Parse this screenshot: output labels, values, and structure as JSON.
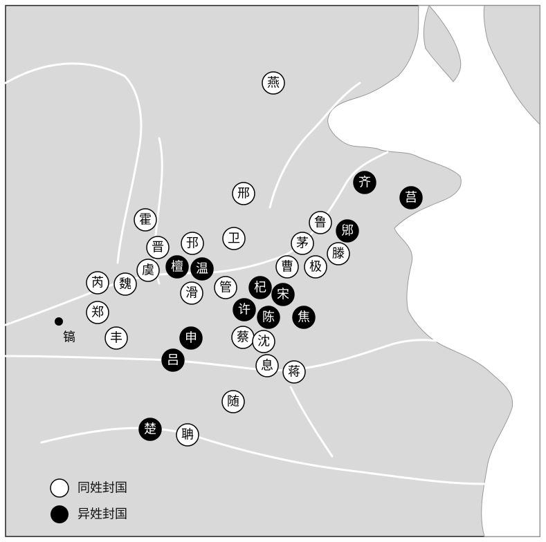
{
  "capital": {
    "label": "镐"
  },
  "states_same_surname": [
    {
      "name": "燕"
    },
    {
      "name": "邢"
    },
    {
      "name": "霍"
    },
    {
      "name": "晋"
    },
    {
      "name": "邘"
    },
    {
      "name": "卫"
    },
    {
      "name": "鲁"
    },
    {
      "name": "茅"
    },
    {
      "name": "滕"
    },
    {
      "name": "曹"
    },
    {
      "name": "极"
    },
    {
      "name": "虞"
    },
    {
      "name": "芮"
    },
    {
      "name": "魏"
    },
    {
      "name": "滑"
    },
    {
      "name": "管"
    },
    {
      "name": "郑"
    },
    {
      "name": "丰"
    },
    {
      "name": "蔡"
    },
    {
      "name": "沈"
    },
    {
      "name": "息"
    },
    {
      "name": "蒋"
    },
    {
      "name": "随"
    },
    {
      "name": "聃"
    }
  ],
  "states_other_surname": [
    {
      "name": "齐"
    },
    {
      "name": "莒"
    },
    {
      "name": "郳"
    },
    {
      "name": "檀"
    },
    {
      "name": "温"
    },
    {
      "name": "杞"
    },
    {
      "name": "宋"
    },
    {
      "name": "许"
    },
    {
      "name": "陈"
    },
    {
      "name": "焦"
    },
    {
      "name": "申"
    },
    {
      "name": "吕"
    },
    {
      "name": "楚"
    }
  ],
  "legend": {
    "same_surname_label": "同姓封国",
    "other_surname_label": "异姓封国"
  },
  "colors": {
    "land": "#d9d9d9",
    "sea": "#ffffff",
    "river": "#ffffff",
    "same_surname_fill": "#ffffff",
    "other_surname_fill": "#000000"
  }
}
